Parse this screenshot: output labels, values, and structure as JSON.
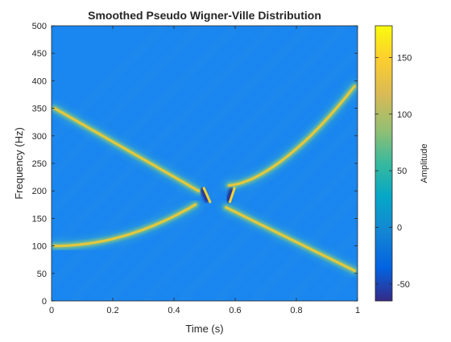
{
  "chart_data": {
    "type": "heatmap",
    "title": "Smoothed Pseudo Wigner-Ville Distribution",
    "xlabel": "Time (s)",
    "ylabel": "Frequency (Hz)",
    "xlim": [
      0,
      1
    ],
    "ylim": [
      0,
      500
    ],
    "xticks": [
      0,
      0.2,
      0.4,
      0.6,
      0.8,
      1
    ],
    "xtick_labels": [
      "0",
      "0.2",
      "0.4",
      "0.6",
      "0.8",
      "1"
    ],
    "yticks": [
      0,
      50,
      100,
      150,
      200,
      250,
      300,
      350,
      400,
      450,
      500
    ],
    "ytick_labels": [
      "0",
      "50",
      "100",
      "150",
      "200",
      "250",
      "300",
      "350",
      "400",
      "450",
      "500"
    ],
    "colorbar": {
      "label": "Amplitude",
      "range": [
        -65,
        178
      ],
      "ticks": [
        -50,
        0,
        50,
        100,
        150
      ],
      "tick_labels": [
        "-50",
        "0",
        "50",
        "100",
        "150"
      ],
      "colormap": "parula"
    },
    "background_value": 0,
    "components": [
      {
        "shape": "linear",
        "t": [
          0.01,
          0.48
        ],
        "f": [
          350,
          200
        ],
        "t2": [
          0.57,
          0.99
        ],
        "f2": [
          170,
          55
        ],
        "peak": 178
      },
      {
        "shape": "quadratic",
        "t": [
          0.01,
          0.47
        ],
        "f": [
          100,
          175
        ],
        "t2": [
          0.58,
          0.99
        ],
        "f2": [
          210,
          390
        ],
        "peak": 165
      }
    ],
    "cross_terms": {
      "t_range": [
        0.35,
        0.68
      ],
      "f_center": 190,
      "f_spread": 45,
      "min": -65
    }
  }
}
